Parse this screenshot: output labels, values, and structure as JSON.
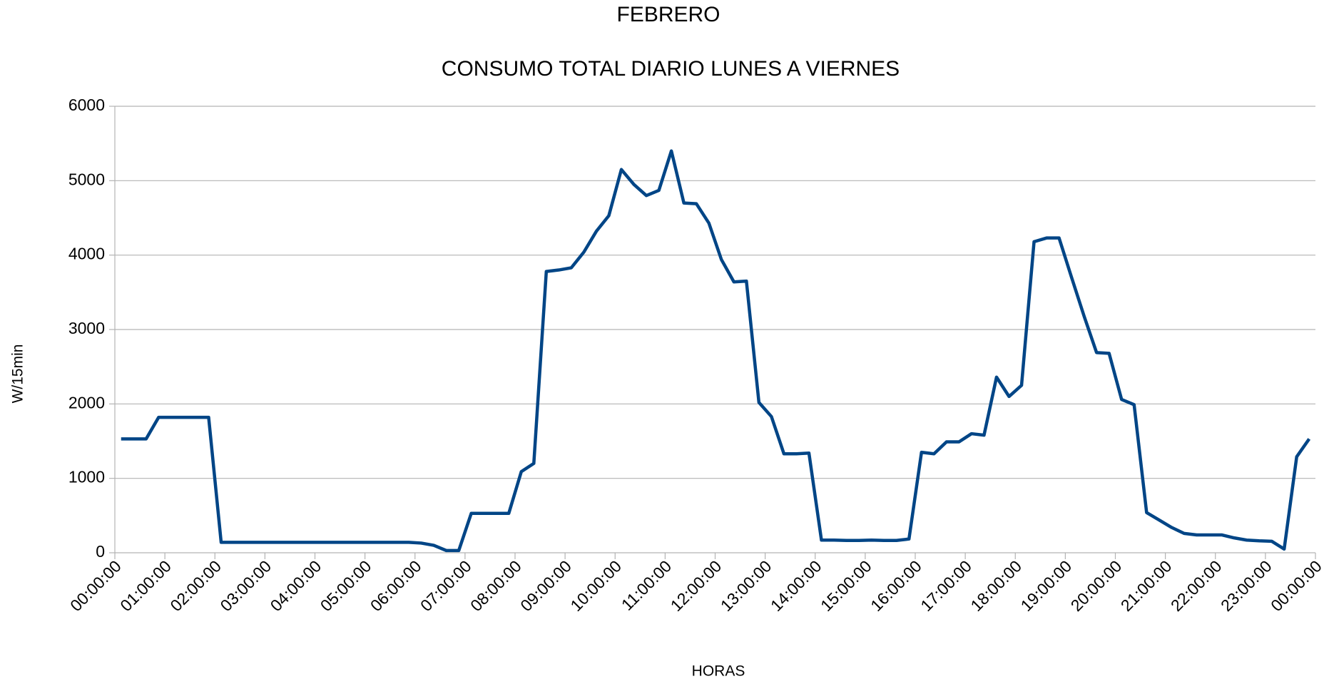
{
  "chart_data": {
    "type": "line",
    "title": "FEBRERO",
    "subtitle": "CONSUMO TOTAL DIARIO LUNES A VIERNES",
    "x_label": "HORAS",
    "y_label": "W/15min",
    "x": [
      0.125,
      0.375,
      0.625,
      0.875,
      1.125,
      1.375,
      1.625,
      1.875,
      2.125,
      2.375,
      2.625,
      2.875,
      3.125,
      3.375,
      3.625,
      3.875,
      4.125,
      4.375,
      4.625,
      4.875,
      5.125,
      5.375,
      5.625,
      5.875,
      6.125,
      6.375,
      6.625,
      6.875,
      7.125,
      7.375,
      7.625,
      7.875,
      8.125,
      8.375,
      8.625,
      8.875,
      9.125,
      9.375,
      9.625,
      9.875,
      10.125,
      10.375,
      10.625,
      10.875,
      11.125,
      11.375,
      11.625,
      11.875,
      12.125,
      12.375,
      12.625,
      12.875,
      13.125,
      13.375,
      13.625,
      13.875,
      14.125,
      14.375,
      14.625,
      14.875,
      15.125,
      15.375,
      15.625,
      15.875,
      16.125,
      16.375,
      16.625,
      16.875,
      17.125,
      17.375,
      17.625,
      17.875,
      18.125,
      18.375,
      18.625,
      18.875,
      19.125,
      19.375,
      19.625,
      19.875,
      20.125,
      20.375,
      20.625,
      20.875,
      21.125,
      21.375,
      21.625,
      21.875,
      22.125,
      22.375,
      22.625,
      22.875,
      23.125,
      23.375,
      23.625,
      23.875
    ],
    "series": [
      {
        "name": "W/15min",
        "color": "#004586",
        "values": [
          1530,
          1530,
          1530,
          1820,
          1820,
          1820,
          1820,
          1820,
          140,
          140,
          140,
          140,
          140,
          140,
          140,
          140,
          140,
          140,
          140,
          140,
          140,
          140,
          140,
          140,
          130,
          100,
          30,
          30,
          530,
          530,
          530,
          530,
          1090,
          1200,
          3780,
          3800,
          3830,
          4040,
          4320,
          4530,
          5150,
          4950,
          4800,
          4870,
          5400,
          4700,
          4690,
          4430,
          3940,
          3640,
          3650,
          2020,
          1830,
          1330,
          1330,
          1340,
          170,
          170,
          165,
          165,
          170,
          165,
          165,
          185,
          1350,
          1330,
          1490,
          1490,
          1600,
          1580,
          2360,
          2100,
          2250,
          4180,
          4230,
          4230,
          3700,
          3180,
          2690,
          2680,
          2060,
          1990,
          540,
          440,
          340,
          260,
          240,
          240,
          240,
          200,
          170,
          160,
          155,
          50,
          1290,
          1530
        ]
      }
    ],
    "xlim": [
      0,
      24
    ],
    "xticks": [
      {
        "value": 0,
        "label": "00:00:00"
      },
      {
        "value": 1,
        "label": "01:00:00"
      },
      {
        "value": 2,
        "label": "02:00:00"
      },
      {
        "value": 3,
        "label": "03:00:00"
      },
      {
        "value": 4,
        "label": "04:00:00"
      },
      {
        "value": 5,
        "label": "05:00:00"
      },
      {
        "value": 6,
        "label": "06:00:00"
      },
      {
        "value": 7,
        "label": "07:00:00"
      },
      {
        "value": 8,
        "label": "08:00:00"
      },
      {
        "value": 9,
        "label": "09:00:00"
      },
      {
        "value": 10,
        "label": "10:00:00"
      },
      {
        "value": 11,
        "label": "11:00:00"
      },
      {
        "value": 12,
        "label": "12:00:00"
      },
      {
        "value": 13,
        "label": "13:00:00"
      },
      {
        "value": 14,
        "label": "14:00:00"
      },
      {
        "value": 15,
        "label": "15:00:00"
      },
      {
        "value": 16,
        "label": "16:00:00"
      },
      {
        "value": 17,
        "label": "17:00:00"
      },
      {
        "value": 18,
        "label": "18:00:00"
      },
      {
        "value": 19,
        "label": "19:00:00"
      },
      {
        "value": 20,
        "label": "20:00:00"
      },
      {
        "value": 21,
        "label": "21:00:00"
      },
      {
        "value": 22,
        "label": "22:00:00"
      },
      {
        "value": 23,
        "label": "23:00:00"
      },
      {
        "value": 24,
        "label": "00:00:00"
      }
    ],
    "ylim": [
      0,
      6000
    ],
    "yticks": [
      0,
      1000,
      2000,
      3000,
      4000,
      5000,
      6000
    ],
    "grid": true
  }
}
